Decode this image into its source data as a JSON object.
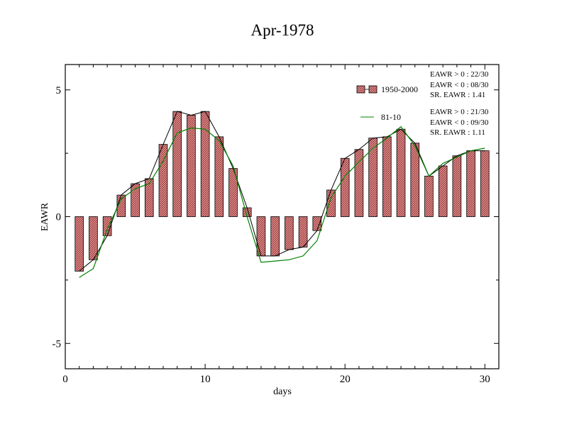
{
  "chart_data": {
    "type": "bar",
    "title": "Apr-1978",
    "xlabel": "days",
    "ylabel": "EAWR",
    "xlim": [
      0,
      31
    ],
    "ylim": [
      -6,
      6
    ],
    "xticks": [
      0,
      10,
      20,
      30
    ],
    "yticks": [
      -5,
      0,
      5
    ],
    "grid": false,
    "legend_position": "top-right",
    "series": [
      {
        "name": "1950-2000",
        "style": "hatched bars with black connecting line",
        "color": "#e88080",
        "x": [
          1,
          2,
          3,
          4,
          5,
          6,
          7,
          8,
          9,
          10,
          11,
          12,
          13,
          14,
          15,
          16,
          17,
          18,
          19,
          20,
          21,
          22,
          23,
          24,
          25,
          26,
          27,
          28,
          29,
          30
        ],
        "values": [
          -2.15,
          -1.7,
          -0.75,
          0.85,
          1.3,
          1.5,
          2.85,
          4.15,
          4.0,
          4.15,
          3.15,
          1.9,
          0.35,
          -1.55,
          -1.55,
          -1.3,
          -1.2,
          -0.55,
          1.05,
          2.3,
          2.65,
          3.1,
          3.15,
          3.45,
          2.9,
          1.6,
          2.0,
          2.4,
          2.6,
          2.6
        ]
      },
      {
        "name": "81-10",
        "style": "line",
        "color": "#008000",
        "x": [
          1,
          2,
          3,
          4,
          5,
          6,
          7,
          8,
          9,
          10,
          11,
          12,
          13,
          14,
          15,
          16,
          17,
          18,
          19,
          20,
          21,
          22,
          23,
          24,
          25,
          26,
          27,
          28,
          29,
          30
        ],
        "values": [
          -2.4,
          -2.05,
          -0.5,
          0.7,
          1.1,
          1.3,
          2.2,
          3.3,
          3.5,
          3.45,
          3.0,
          2.0,
          0.0,
          -1.8,
          -1.75,
          -1.7,
          -1.55,
          -0.95,
          0.75,
          1.6,
          2.15,
          2.7,
          3.1,
          3.55,
          2.8,
          1.6,
          2.1,
          2.35,
          2.6,
          2.7
        ]
      }
    ],
    "stats": [
      {
        "series": "1950-2000",
        "lines": [
          "EAWR > 0 : 22/30",
          "EAWR < 0 : 08/30",
          "SR. EAWR :  1.41"
        ]
      },
      {
        "series": "81-10",
        "lines": [
          "EAWR > 0 : 21/30",
          "EAWR < 0 : 09/30",
          "SR. EAWR :  1.11"
        ]
      }
    ]
  }
}
